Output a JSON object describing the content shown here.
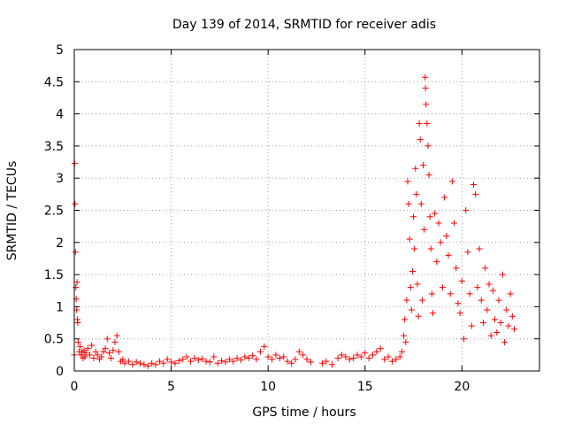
{
  "chart_data": {
    "type": "scatter",
    "title": "Day 139 of 2014, SRMTID for receiver adis",
    "xlabel": "GPS time / hours",
    "ylabel": "SRMTID / TECUs",
    "xlim": [
      0,
      24
    ],
    "ylim": [
      0,
      5
    ],
    "xticks": [
      0,
      5,
      10,
      15,
      20
    ],
    "xtick_labels": [
      "0",
      "5",
      "10",
      "15",
      "20"
    ],
    "yticks": [
      0,
      0.5,
      1,
      1.5,
      2,
      2.5,
      3,
      3.5,
      4,
      4.5,
      5
    ],
    "ytick_labels": [
      "0",
      "0.5",
      "1",
      "1.5",
      "2",
      "2.5",
      "3",
      "3.5",
      "4",
      "4.5",
      "5"
    ],
    "grid": true,
    "marker": "plus",
    "color": "#ff0000",
    "series": [
      {
        "name": "SRMTID",
        "points": [
          [
            0.0,
            0.25
          ],
          [
            0.02,
            3.23
          ],
          [
            0.04,
            2.6
          ],
          [
            0.06,
            1.85
          ],
          [
            0.08,
            1.3
          ],
          [
            0.1,
            1.12
          ],
          [
            0.12,
            0.95
          ],
          [
            0.14,
            1.38
          ],
          [
            0.16,
            0.8
          ],
          [
            0.18,
            0.75
          ],
          [
            0.2,
            0.45
          ],
          [
            0.25,
            0.3
          ],
          [
            0.3,
            0.38
          ],
          [
            0.35,
            0.25
          ],
          [
            0.4,
            0.3
          ],
          [
            0.45,
            0.2
          ],
          [
            0.5,
            0.32
          ],
          [
            0.55,
            0.22
          ],
          [
            0.6,
            0.28
          ],
          [
            0.7,
            0.35
          ],
          [
            0.8,
            0.25
          ],
          [
            0.9,
            0.4
          ],
          [
            1.0,
            0.2
          ],
          [
            1.1,
            0.3
          ],
          [
            1.2,
            0.25
          ],
          [
            1.3,
            0.18
          ],
          [
            1.4,
            0.22
          ],
          [
            1.5,
            0.3
          ],
          [
            1.6,
            0.35
          ],
          [
            1.7,
            0.5
          ],
          [
            1.8,
            0.28
          ],
          [
            1.9,
            0.2
          ],
          [
            2.0,
            0.32
          ],
          [
            2.1,
            0.45
          ],
          [
            2.2,
            0.55
          ],
          [
            2.3,
            0.3
          ],
          [
            2.4,
            0.15
          ],
          [
            2.5,
            0.18
          ],
          [
            2.6,
            0.12
          ],
          [
            2.8,
            0.15
          ],
          [
            3.0,
            0.1
          ],
          [
            3.2,
            0.14
          ],
          [
            3.4,
            0.12
          ],
          [
            3.6,
            0.1
          ],
          [
            3.8,
            0.08
          ],
          [
            4.0,
            0.12
          ],
          [
            4.2,
            0.1
          ],
          [
            4.4,
            0.15
          ],
          [
            4.6,
            0.12
          ],
          [
            4.8,
            0.18
          ],
          [
            5.0,
            0.14
          ],
          [
            5.2,
            0.12
          ],
          [
            5.4,
            0.16
          ],
          [
            5.6,
            0.18
          ],
          [
            5.8,
            0.22
          ],
          [
            6.0,
            0.15
          ],
          [
            6.2,
            0.2
          ],
          [
            6.4,
            0.17
          ],
          [
            6.6,
            0.19
          ],
          [
            6.8,
            0.15
          ],
          [
            7.0,
            0.14
          ],
          [
            7.2,
            0.22
          ],
          [
            7.4,
            0.12
          ],
          [
            7.6,
            0.16
          ],
          [
            7.8,
            0.14
          ],
          [
            8.0,
            0.18
          ],
          [
            8.2,
            0.15
          ],
          [
            8.4,
            0.2
          ],
          [
            8.6,
            0.17
          ],
          [
            8.8,
            0.22
          ],
          [
            9.0,
            0.2
          ],
          [
            9.2,
            0.24
          ],
          [
            9.4,
            0.18
          ],
          [
            9.6,
            0.3
          ],
          [
            9.8,
            0.38
          ],
          [
            10.0,
            0.22
          ],
          [
            10.2,
            0.18
          ],
          [
            10.4,
            0.25
          ],
          [
            10.6,
            0.2
          ],
          [
            10.8,
            0.22
          ],
          [
            11.0,
            0.15
          ],
          [
            11.2,
            0.12
          ],
          [
            11.4,
            0.18
          ],
          [
            11.6,
            0.3
          ],
          [
            11.8,
            0.25
          ],
          [
            12.0,
            0.18
          ],
          [
            12.2,
            0.14
          ],
          [
            12.8,
            0.12
          ],
          [
            13.0,
            0.15
          ],
          [
            13.3,
            0.1
          ],
          [
            13.6,
            0.2
          ],
          [
            13.8,
            0.25
          ],
          [
            14.0,
            0.22
          ],
          [
            14.2,
            0.18
          ],
          [
            14.4,
            0.2
          ],
          [
            14.6,
            0.25
          ],
          [
            14.8,
            0.22
          ],
          [
            15.0,
            0.28
          ],
          [
            15.2,
            0.2
          ],
          [
            15.4,
            0.25
          ],
          [
            15.6,
            0.3
          ],
          [
            15.8,
            0.35
          ],
          [
            16.0,
            0.18
          ],
          [
            16.2,
            0.22
          ],
          [
            16.4,
            0.15
          ],
          [
            16.6,
            0.18
          ],
          [
            16.8,
            0.22
          ],
          [
            16.9,
            0.3
          ],
          [
            17.0,
            0.55
          ],
          [
            17.05,
            0.8
          ],
          [
            17.1,
            0.45
          ],
          [
            17.15,
            1.1
          ],
          [
            17.2,
            2.95
          ],
          [
            17.25,
            2.6
          ],
          [
            17.3,
            2.05
          ],
          [
            17.35,
            1.3
          ],
          [
            17.4,
            0.95
          ],
          [
            17.45,
            1.55
          ],
          [
            17.5,
            2.4
          ],
          [
            17.55,
            1.9
          ],
          [
            17.6,
            3.15
          ],
          [
            17.65,
            2.75
          ],
          [
            17.7,
            1.35
          ],
          [
            17.75,
            0.85
          ],
          [
            17.8,
            3.85
          ],
          [
            17.85,
            3.6
          ],
          [
            17.9,
            2.6
          ],
          [
            17.95,
            1.1
          ],
          [
            18.0,
            3.2
          ],
          [
            18.05,
            2.2
          ],
          [
            18.1,
            4.57
          ],
          [
            18.12,
            4.4
          ],
          [
            18.15,
            4.15
          ],
          [
            18.2,
            3.85
          ],
          [
            18.25,
            3.5
          ],
          [
            18.3,
            3.05
          ],
          [
            18.35,
            2.4
          ],
          [
            18.4,
            1.9
          ],
          [
            18.45,
            1.2
          ],
          [
            18.5,
            0.9
          ],
          [
            18.6,
            2.45
          ],
          [
            18.7,
            1.7
          ],
          [
            18.8,
            2.3
          ],
          [
            18.9,
            2.0
          ],
          [
            19.0,
            1.3
          ],
          [
            19.1,
            2.7
          ],
          [
            19.2,
            2.1
          ],
          [
            19.3,
            1.8
          ],
          [
            19.4,
            1.2
          ],
          [
            19.5,
            2.95
          ],
          [
            19.6,
            2.3
          ],
          [
            19.7,
            1.6
          ],
          [
            19.8,
            1.05
          ],
          [
            19.9,
            0.9
          ],
          [
            20.0,
            1.4
          ],
          [
            20.1,
            0.5
          ],
          [
            20.2,
            2.5
          ],
          [
            20.3,
            1.85
          ],
          [
            20.4,
            1.2
          ],
          [
            20.5,
            0.7
          ],
          [
            20.6,
            2.9
          ],
          [
            20.7,
            2.75
          ],
          [
            20.8,
            1.3
          ],
          [
            20.9,
            1.9
          ],
          [
            21.0,
            1.1
          ],
          [
            21.1,
            0.75
          ],
          [
            21.2,
            1.6
          ],
          [
            21.3,
            0.95
          ],
          [
            21.4,
            1.35
          ],
          [
            21.5,
            0.55
          ],
          [
            21.6,
            1.25
          ],
          [
            21.7,
            0.8
          ],
          [
            21.8,
            0.6
          ],
          [
            21.9,
            1.1
          ],
          [
            22.0,
            0.75
          ],
          [
            22.1,
            1.5
          ],
          [
            22.2,
            0.45
          ],
          [
            22.3,
            0.95
          ],
          [
            22.4,
            0.7
          ],
          [
            22.5,
            1.2
          ],
          [
            22.6,
            0.85
          ],
          [
            22.7,
            0.65
          ]
        ]
      }
    ]
  }
}
